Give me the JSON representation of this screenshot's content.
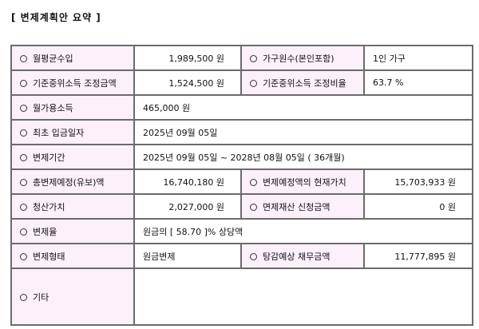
{
  "title": "[ 변제계획안 요약 ]",
  "rows": [
    {
      "l1": "월평균수입",
      "v1": "1,989,500 원",
      "l2": "가구원수(본인포함)",
      "v2": "1인 가구"
    },
    {
      "l1": "기준중위소득 조정금액",
      "v1": "1,524,500 원",
      "l2": "기준중위소득 조정비율",
      "v2": "63.7 %"
    },
    {
      "l1": "월가용소득",
      "v1": "465,000 원"
    },
    {
      "l1": "최초 입금일자",
      "v1": "2025년 09월 05일"
    },
    {
      "l1": "변제기간",
      "v1": "2025년 09월 05일 ~ 2028년 08월 05일 ( 36개월)"
    },
    {
      "l1": "총변제예정(유보)액",
      "v1": "16,740,180 원",
      "l2": "변제예정액의 현재가치",
      "v2": "15,703,933 원"
    },
    {
      "l1": "청산가치",
      "v1": "2,027,000 원",
      "l2": "면제재산 신청금액",
      "v2": "0 원"
    },
    {
      "l1": "변제율",
      "v1": "원금의 [ 58.70 ]% 상당액"
    },
    {
      "l1": "변제형태",
      "v1": "원금변제",
      "l2": "탕감예상 채무금액",
      "v2": "11,777,895 원"
    },
    {
      "l1": "기타",
      "v1": ""
    }
  ]
}
